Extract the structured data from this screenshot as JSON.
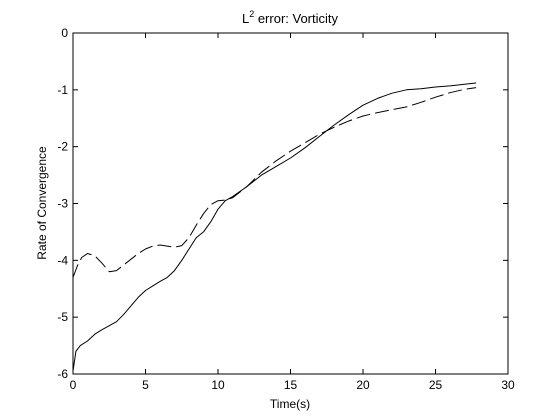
{
  "chart_data": {
    "type": "line",
    "title_base": "L",
    "title_superscript": "2",
    "title_rest": " error: Vorticity",
    "xlabel": "Time(s)",
    "ylabel": "Rate of Convergence",
    "xlim": [
      0,
      30
    ],
    "ylim": [
      -6,
      0
    ],
    "xticks": [
      0,
      5,
      10,
      15,
      20,
      25,
      30
    ],
    "yticks": [
      -6,
      -5,
      -4,
      -3,
      -2,
      -1,
      0
    ],
    "grid": false,
    "colors": {
      "line": "#000000",
      "axes": "#000000",
      "background": "#ffffff"
    },
    "series": [
      {
        "style": "solid",
        "x": [
          0,
          0.2,
          0.5,
          1.0,
          1.5,
          2.0,
          2.5,
          3.0,
          3.5,
          4.0,
          4.5,
          5.0,
          5.5,
          6.0,
          6.5,
          7.0,
          7.5,
          8.0,
          8.5,
          9.0,
          9.5,
          10.0,
          10.5,
          11.0,
          12.0,
          13.0,
          14.0,
          15.0,
          16.0,
          17.0,
          18.0,
          19.0,
          20.0,
          21.0,
          22.0,
          23.0,
          24.0,
          25.0,
          26.0,
          27.0,
          27.8
        ],
        "y": [
          -5.95,
          -5.6,
          -5.5,
          -5.42,
          -5.3,
          -5.22,
          -5.15,
          -5.08,
          -4.95,
          -4.8,
          -4.65,
          -4.53,
          -4.45,
          -4.37,
          -4.3,
          -4.18,
          -4.0,
          -3.8,
          -3.6,
          -3.5,
          -3.32,
          -3.1,
          -2.95,
          -2.88,
          -2.7,
          -2.5,
          -2.35,
          -2.2,
          -2.02,
          -1.82,
          -1.62,
          -1.44,
          -1.27,
          -1.15,
          -1.06,
          -1.0,
          -0.98,
          -0.95,
          -0.93,
          -0.9,
          -0.88
        ]
      },
      {
        "style": "dashed",
        "x": [
          0,
          0.3,
          0.6,
          1.0,
          1.5,
          2.0,
          2.5,
          3.0,
          3.5,
          4.0,
          4.5,
          5.0,
          5.5,
          6.0,
          7.0,
          7.5,
          8.0,
          8.5,
          9.0,
          9.5,
          10.0,
          10.5,
          11.0,
          12.0,
          13.0,
          14.0,
          15.0,
          16.0,
          17.0,
          18.0,
          19.0,
          20.0,
          21.0,
          22.0,
          23.0,
          24.0,
          25.0,
          26.0,
          27.0,
          27.8
        ],
        "y": [
          -4.3,
          -4.1,
          -3.95,
          -3.88,
          -3.92,
          -4.05,
          -4.2,
          -4.18,
          -4.08,
          -3.98,
          -3.88,
          -3.8,
          -3.75,
          -3.73,
          -3.77,
          -3.74,
          -3.6,
          -3.38,
          -3.18,
          -3.02,
          -2.95,
          -2.94,
          -2.9,
          -2.7,
          -2.45,
          -2.25,
          -2.08,
          -1.93,
          -1.78,
          -1.66,
          -1.55,
          -1.46,
          -1.4,
          -1.35,
          -1.3,
          -1.22,
          -1.13,
          -1.05,
          -0.99,
          -0.96
        ]
      }
    ]
  }
}
